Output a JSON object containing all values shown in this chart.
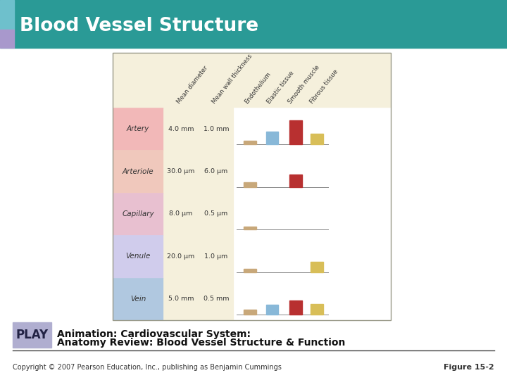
{
  "title": "Blood Vessel Structure",
  "title_bg": "#2a9a96",
  "title_text_color": "white",
  "footer_text": "Copyright © 2007 Pearson Education, Inc., publishing as Benjamin Cummings",
  "footer_right": "Figure 15-2",
  "play_text": "PLAY",
  "play_box_color": "#b0aed0",
  "animation_line1": "Animation: Cardiovascular System:",
  "animation_line2": "Anatomy Review: Blood Vessel Structure & Function",
  "table_bg": "#f5f0dc",
  "col_headers": [
    "Mean diameter",
    "Mean\nwall thickness",
    "Endothelium",
    "Elastic tissue",
    "Smooth muscle",
    "Fibrous tissue"
  ],
  "rows": [
    {
      "name": "Artery",
      "row_color": "#f2b8b8",
      "diameter": "4.0 mm",
      "thickness": "1.0 mm",
      "bars": [
        0.13,
        0.42,
        0.8,
        0.35
      ],
      "bar_colors": [
        "#c8a87a",
        "#88b8d8",
        "#b83030",
        "#d8be58"
      ]
    },
    {
      "name": "Arteriole",
      "row_color": "#f0c8bc",
      "diameter": "30.0 μm",
      "thickness": "6.0 μm",
      "bars": [
        0.16,
        0.0,
        0.42,
        0.0
      ],
      "bar_colors": [
        "#c8a87a",
        "#88b8d8",
        "#b83030",
        "#d8be58"
      ]
    },
    {
      "name": "Capillary",
      "row_color": "#e8c0d0",
      "diameter": "8.0 μm",
      "thickness": "0.5 μm",
      "bars": [
        0.1,
        0.0,
        0.0,
        0.0
      ],
      "bar_colors": [
        "#c8a87a",
        "#88b8d8",
        "#b83030",
        "#d8be58"
      ]
    },
    {
      "name": "Venule",
      "row_color": "#d0ccec",
      "diameter": "20.0 μm",
      "thickness": "1.0 μm",
      "bars": [
        0.1,
        0.0,
        0.0,
        0.33
      ],
      "bar_colors": [
        "#c8a87a",
        "#88b8d8",
        "#b83030",
        "#d8be58"
      ]
    },
    {
      "name": "Vein",
      "row_color": "#b0c8e0",
      "diameter": "5.0 mm",
      "thickness": "0.5 mm",
      "bars": [
        0.17,
        0.33,
        0.47,
        0.35
      ],
      "bar_colors": [
        "#c8a87a",
        "#88b8d8",
        "#b83030",
        "#d8be58"
      ]
    }
  ]
}
